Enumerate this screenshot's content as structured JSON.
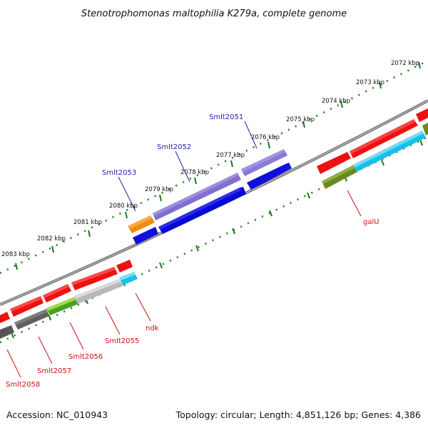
{
  "title": "Stenotrophomonas maltophilia K279a, complete genome",
  "footer": {
    "accession": "Accession: NC_010943",
    "summary": "Topology: circular; Length: 4,851,126 bp; Genes: 4,386"
  },
  "ruler_ticks": [
    "2072 kbp",
    "2073 kbp",
    "2074 kbp",
    "2075 kbp",
    "2076 kbp",
    "2077 kbp",
    "2078 kbp",
    "2079 kbp",
    "2080 kbp",
    "2081 kbp",
    "2082 kbp",
    "2083 kbp"
  ],
  "gene_labels": {
    "top": [
      "Smlt2051",
      "Smlt2052",
      "Smlt2053"
    ],
    "bottom": [
      "galU",
      "ndk",
      "Smlt2055",
      "Smlt2056",
      "Smlt2057",
      "Smlt2058"
    ]
  },
  "colors": {
    "backbone": "#8a8a8a",
    "ruler_dots": "#1a7a1a",
    "label_top": "#2222aa",
    "label_bottom": "#cc1111",
    "red_gene": "#ee1111",
    "blue_gene": "#1010dd",
    "purple_gene": "#8070cc",
    "orange_gene": "#f08a10",
    "cyan_gene": "#19c0e8",
    "olive_gene": "#6a8a20",
    "lime_gene": "#70cc20",
    "grey_gene": "#b8b8b8",
    "dark_grey_gene": "#666666"
  }
}
